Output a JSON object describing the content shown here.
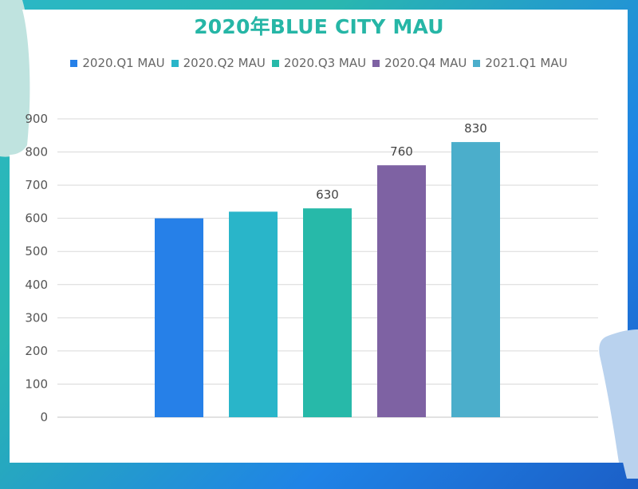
{
  "chart_data": {
    "type": "bar",
    "title": "2020年BLUE CITY MAU",
    "categories": [
      "2020.Q1 MAU",
      "2020.Q2 MAU",
      "2020.Q3 MAU",
      "2020.Q4 MAU",
      "2021.Q1 MAU"
    ],
    "values": [
      600,
      620,
      630,
      760,
      830
    ],
    "data_labels": [
      "",
      "",
      "630",
      "760",
      "830"
    ],
    "colors": [
      "#2680e8",
      "#29b5c9",
      "#27b9a9",
      "#7e62a3",
      "#4baecb"
    ],
    "ylim": [
      0,
      900
    ],
    "yticks": [
      "0",
      "100",
      "200",
      "300",
      "400",
      "500",
      "600",
      "700",
      "800",
      "900"
    ],
    "grid": true,
    "legend_position": "top"
  },
  "theme": {
    "title_color": "#26b6a6",
    "grid_color": "#d9d9d9"
  }
}
